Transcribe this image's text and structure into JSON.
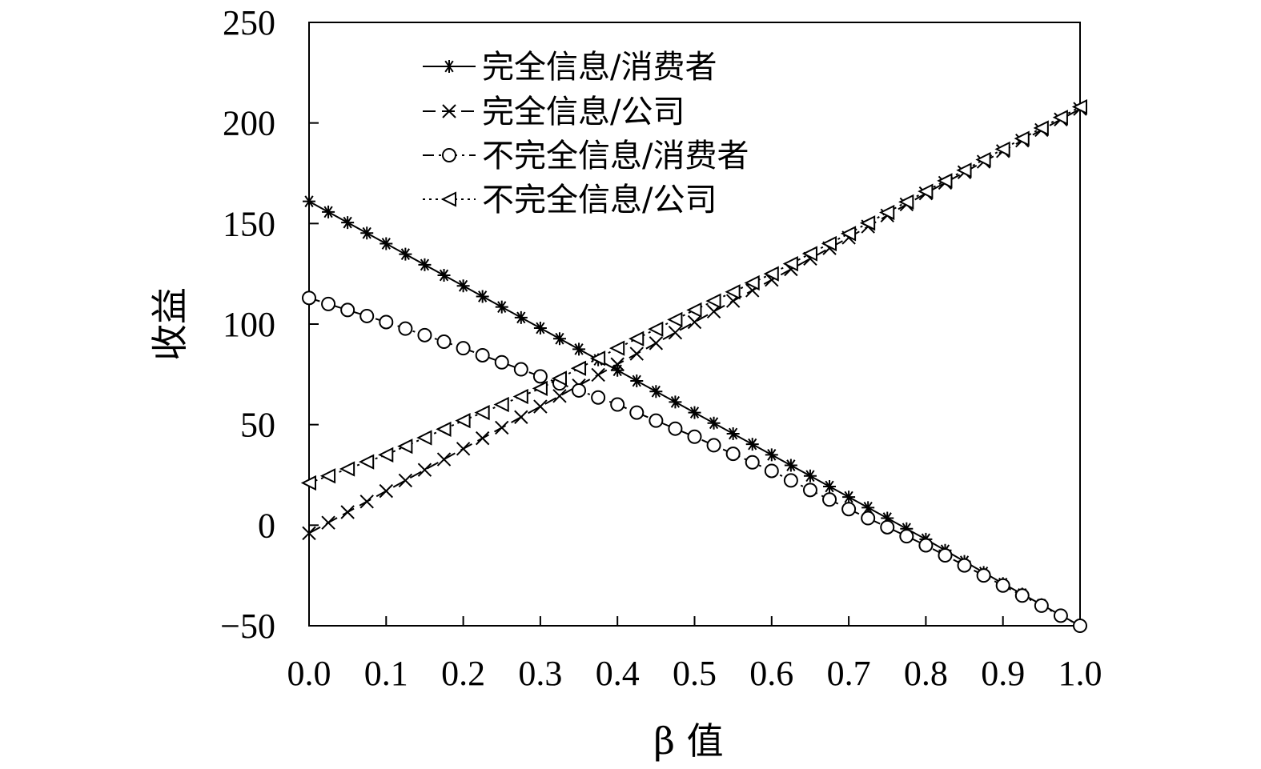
{
  "chart_data": {
    "type": "line",
    "title": "",
    "xlabel": "β 值",
    "ylabel": "收益",
    "xlim": [
      0,
      1
    ],
    "ylim": [
      -50,
      250
    ],
    "x_ticks": [
      "0.0",
      "0.1",
      "0.2",
      "0.3",
      "0.4",
      "0.5",
      "0.6",
      "0.7",
      "0.8",
      "0.9",
      "1.0"
    ],
    "y_ticks": [
      "250",
      "200",
      "150",
      "100",
      "50",
      "0",
      "−50"
    ],
    "legend_position": "top-left",
    "grid": false,
    "series": [
      {
        "name": "完全信息/消费者",
        "marker": "asterisk",
        "line": "solid",
        "x": [
          0,
          0.1,
          0.2,
          0.3,
          0.4,
          0.5,
          0.6,
          0.7,
          0.8,
          0.9,
          1.0
        ],
        "y": [
          161,
          140,
          119,
          98,
          77,
          56,
          35,
          14,
          -7,
          -29,
          -50
        ]
      },
      {
        "name": "完全信息/公司",
        "marker": "x",
        "line": "dash",
        "x": [
          0,
          0.1,
          0.2,
          0.3,
          0.4,
          0.5,
          0.6,
          0.7,
          0.8,
          0.9,
          1.0
        ],
        "y": [
          -4,
          17,
          38,
          59,
          80,
          101,
          122,
          143,
          165,
          186,
          207
        ]
      },
      {
        "name": "不完全信息/消费者",
        "marker": "circle",
        "line": "dashdot",
        "x": [
          0,
          0.1,
          0.2,
          0.3,
          0.4,
          0.5,
          0.6,
          0.7,
          0.8,
          0.9,
          1.0
        ],
        "y": [
          113,
          101,
          88,
          74,
          60,
          44,
          27,
          8,
          -10,
          -30,
          -50
        ]
      },
      {
        "name": "不完全信息/公司",
        "marker": "triangle-left",
        "line": "dotted",
        "x": [
          0,
          0.1,
          0.2,
          0.3,
          0.4,
          0.5,
          0.6,
          0.7,
          0.8,
          0.9,
          1.0
        ],
        "y": [
          21,
          35,
          52,
          68,
          88,
          107,
          125,
          145,
          166,
          187,
          208
        ]
      }
    ]
  }
}
